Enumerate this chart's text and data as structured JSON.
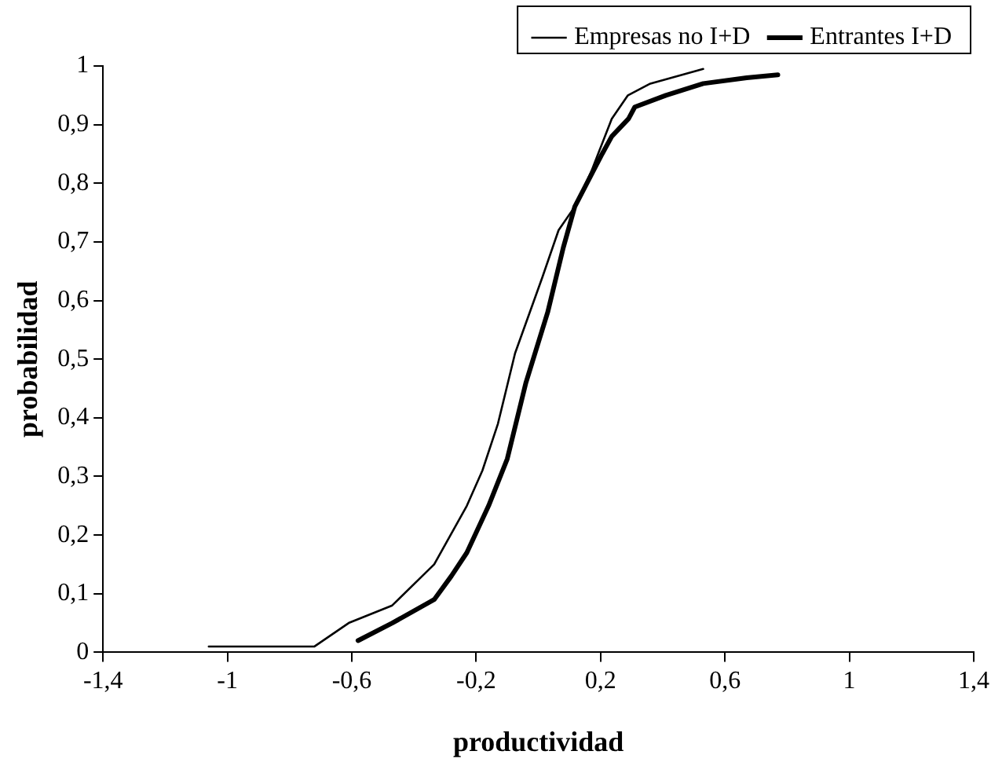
{
  "chart_data": {
    "type": "line",
    "xlabel": "productividad",
    "ylabel": "probabilidad",
    "legend": "top",
    "marker": "none",
    "grid": false,
    "xlim": [
      -1.4,
      1.4
    ],
    "xticks": [
      {
        "value": -1.4,
        "label": "-1,4"
      },
      {
        "value": -1,
        "label": "-1"
      },
      {
        "value": -0.6,
        "label": "-0,6"
      },
      {
        "value": -0.2,
        "label": "-0,2"
      },
      {
        "value": 0.2,
        "label": "0,2"
      },
      {
        "value": 0.6,
        "label": "0,6"
      },
      {
        "value": 1,
        "label": "1"
      },
      {
        "value": 1.4,
        "label": "1,4"
      }
    ],
    "ylim": [
      0,
      1
    ],
    "yticks": [
      0,
      {
        "value": 0.1,
        "label": "0,1"
      },
      {
        "value": 0.2,
        "label": "0,2"
      },
      {
        "value": 0.3,
        "label": "0,3"
      },
      {
        "value": 0.4,
        "label": "0,4"
      },
      {
        "value": 0.5,
        "label": "0,5"
      },
      {
        "value": 0.6,
        "label": "0,6"
      },
      {
        "value": 0.7,
        "label": "0,7"
      },
      {
        "value": 0.8,
        "label": "0,8"
      },
      {
        "value": 0.9,
        "label": "0,9"
      },
      1
    ],
    "series": [
      {
        "name": "Empresas no I+D",
        "color": "#000000",
        "x": [
          -1.06,
          -0.72,
          -0.61,
          -0.47,
          -0.335,
          -0.23,
          -0.18,
          -0.13,
          -0.075,
          0.013,
          0.065,
          0.117,
          0.17,
          0.236,
          0.288,
          0.36,
          0.53
        ],
        "values": [
          0.01,
          0.01,
          0.05,
          0.08,
          0.15,
          0.25,
          0.31,
          0.39,
          0.51,
          0.64,
          0.72,
          0.76,
          0.82,
          0.91,
          0.95,
          0.97,
          0.995
        ]
      },
      {
        "name": "Entrantes I+D",
        "color": "#000000",
        "x": [
          -0.58,
          -0.47,
          -0.335,
          -0.28,
          -0.23,
          -0.16,
          -0.1,
          -0.04,
          0.03,
          0.08,
          0.117,
          0.205,
          0.236,
          0.29,
          0.31,
          0.41,
          0.53,
          0.67,
          0.77
        ],
        "values": [
          0.02,
          0.05,
          0.09,
          0.13,
          0.17,
          0.25,
          0.33,
          0.46,
          0.58,
          0.69,
          0.76,
          0.85,
          0.88,
          0.91,
          0.93,
          0.95,
          0.97,
          0.98,
          0.985
        ]
      }
    ]
  }
}
